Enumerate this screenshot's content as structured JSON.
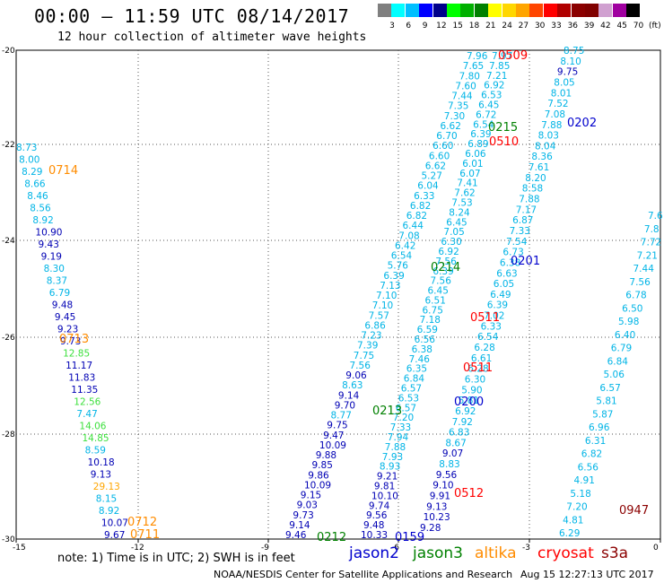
{
  "header": {
    "title": "00:00 – 11:59 UTC 08/14/2017",
    "subtitle": "12 hour collection of altimeter wave heights"
  },
  "colorbar": {
    "unit": "(ft)",
    "colors": [
      "#7f7f7f",
      "#00ffff",
      "#00bfff",
      "#0000ff",
      "#00008b",
      "#00ff00",
      "#00b000",
      "#008000",
      "#ffff00",
      "#ffd700",
      "#ffa500",
      "#ff4500",
      "#ff0000",
      "#b00000",
      "#8b0000",
      "#800000",
      "#d0a0d0",
      "#a000a0",
      "#000000"
    ],
    "labels": [
      "3",
      "6",
      "9",
      "12",
      "15",
      "18",
      "21",
      "24",
      "27",
      "30",
      "33",
      "36",
      "39",
      "42",
      "45",
      "70"
    ]
  },
  "axes": {
    "x_ticks": [
      "-15",
      "-12",
      "-9",
      "-6",
      "-3",
      "0"
    ],
    "y_ticks": [
      "-20",
      "-22",
      "-24",
      "-26",
      "-28",
      "-30"
    ]
  },
  "tracks": {
    "t1": [
      "8.73",
      "8.00",
      "8.29",
      "8.66",
      "8.46",
      "8.56",
      "8.92",
      "10.90",
      "9.43",
      "9.19",
      "8.30",
      "8.37",
      "6.79",
      "9.48",
      "9.45",
      "9.23",
      "9.73",
      "12.85",
      "11.17",
      "11.83",
      "11.35",
      "12.56",
      "7.47",
      "14.06",
      "14.85",
      "8.59",
      "10.18",
      "9.13",
      "29.13",
      "8.15",
      "8.92",
      "10.07",
      "9.67"
    ],
    "t2": [
      "7.96",
      "7.65",
      "7.80",
      "7.60",
      "7.44",
      "7.35",
      "7.30",
      "6.62",
      "6.70",
      "6.60",
      "6.60",
      "6.62",
      "5.27",
      "6.04",
      "6.33",
      "6.82",
      "6.82",
      "6.44",
      "7.08",
      "6.42",
      "6.54",
      "5.76",
      "6.39",
      "7.13",
      "7.10",
      "7.10",
      "7.57",
      "6.86",
      "7.23",
      "7.39",
      "7.75",
      "7.56",
      "9.06",
      "8.63",
      "9.14",
      "9.70",
      "8.77",
      "9.75",
      "9.47",
      "10.09",
      "9.88",
      "9.85",
      "9.86",
      "10.09",
      "9.15",
      "9.03",
      "9.73",
      "9.14",
      "9.46"
    ],
    "t3": [
      "7.97",
      "7.85",
      "7.21",
      "6.92",
      "6.53",
      "6.45",
      "6.72",
      "6.54",
      "6.39",
      "6.89",
      "6.06",
      "6.01",
      "6.07",
      "7.41",
      "7.62",
      "7.53",
      "8.24",
      "6.45",
      "7.05",
      "6.30",
      "6.92",
      "7.56",
      "6.39",
      "7.56",
      "6.45",
      "6.51",
      "6.75",
      "7.18",
      "6.59",
      "6.56",
      "6.38",
      "7.46",
      "6.35",
      "6.84",
      "6.57",
      "6.53",
      "6.57",
      "7.20",
      "7.33",
      "7.94",
      "7.88",
      "7.93",
      "8.93",
      "9.21",
      "9.81",
      "10.10",
      "9.74",
      "9.56",
      "9.48",
      "10.33"
    ],
    "t4": [
      "8.75",
      "8.10",
      "9.75",
      "8.05",
      "8.01",
      "7.52",
      "7.08",
      "7.88",
      "8.03",
      "8.04",
      "8.36",
      "7.61",
      "8.20",
      "8.58",
      "7.88",
      "7.17",
      "6.87",
      "7.33",
      "7.54",
      "6.73",
      "6.38",
      "6.63",
      "6.05",
      "6.49",
      "6.39",
      "7.02",
      "6.33",
      "6.54",
      "6.28",
      "6.61",
      "6.28",
      "6.30",
      "5.90",
      "5.81",
      "6.92",
      "7.92",
      "6.83",
      "8.67",
      "9.07",
      "8.83",
      "9.56",
      "9.10",
      "9.91",
      "9.13",
      "10.23",
      "9.28"
    ],
    "t5": [
      "7.6",
      "7.8",
      "7.72",
      "7.21",
      "7.44",
      "7.56",
      "6.78",
      "6.50",
      "5.98",
      "6.40",
      "6.79",
      "6.84",
      "5.06",
      "6.57",
      "5.81",
      "5.87",
      "6.96",
      "6.31",
      "6.82",
      "6.56",
      "4.91",
      "5.18",
      "7.20",
      "4.81",
      "6.29"
    ]
  },
  "pass_labels": [
    {
      "text": "0714",
      "color": "#ff8c00"
    },
    {
      "text": "0713",
      "color": "#ff8c00"
    },
    {
      "text": "0712",
      "color": "#ff8c00"
    },
    {
      "text": "0711",
      "color": "#ff8c00"
    },
    {
      "text": "0509",
      "color": "#ff0000"
    },
    {
      "text": "0510",
      "color": "#ff0000"
    },
    {
      "text": "0511",
      "color": "#ff0000"
    },
    {
      "text": "0511",
      "color": "#ff0000"
    },
    {
      "text": "0512",
      "color": "#ff0000"
    },
    {
      "text": "0215",
      "color": "#008000"
    },
    {
      "text": "0214",
      "color": "#008000"
    },
    {
      "text": "0213",
      "color": "#008000"
    },
    {
      "text": "0212",
      "color": "#008000"
    },
    {
      "text": "0202",
      "color": "#0000cd"
    },
    {
      "text": "0201",
      "color": "#0000cd"
    },
    {
      "text": "0200",
      "color": "#0000cd"
    },
    {
      "text": "0159",
      "color": "#0000cd"
    },
    {
      "text": "0947",
      "color": "#8b0000"
    }
  ],
  "note": "note: 1) Time is in UTC; 2) SWH is in feet",
  "legend": [
    {
      "name": "jason2",
      "color": "#0000cd"
    },
    {
      "name": "jason3",
      "color": "#008000"
    },
    {
      "name": "altika",
      "color": "#ff8c00"
    },
    {
      "name": "cryosat",
      "color": "#ff0000"
    },
    {
      "name": "s3a",
      "color": "#8b0000"
    }
  ],
  "footer": {
    "credit": "NOAA/NESDIS Center for Satellite Applications and Research",
    "timestamp": "Aug 15 12:27:13 UTC 2017"
  }
}
